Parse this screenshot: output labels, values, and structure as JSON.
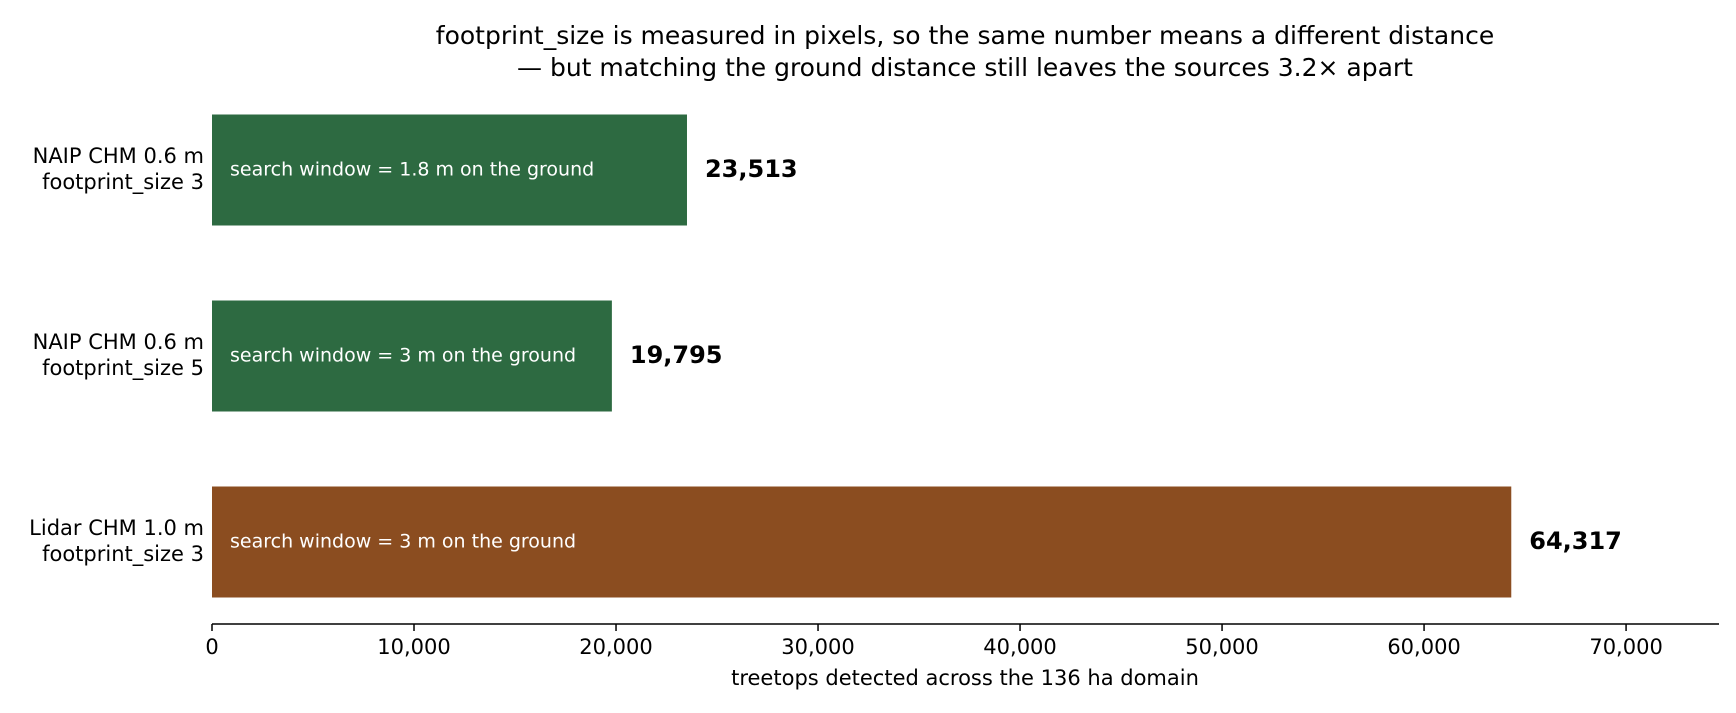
{
  "chart_data": {
    "type": "barh",
    "title": [
      "footprint_size is measured in pixels, so the same number means a different distance",
      "— but matching the ground distance still leaves the sources 3.2× apart"
    ],
    "categories": [
      [
        "NAIP CHM 0.6 m",
        "footprint_size 3"
      ],
      [
        "NAIP CHM 0.6 m",
        "footprint_size 5"
      ],
      [
        "Lidar CHM 1.0 m",
        "footprint_size 3"
      ]
    ],
    "values": [
      23513,
      19795,
      64317
    ],
    "value_labels": [
      "23,513",
      "19,795",
      "64,317"
    ],
    "annotations": [
      "search window = 1.8 m on the ground",
      "search window = 3 m on the ground",
      "search window = 3 m on the ground"
    ],
    "colors": [
      "#2d6a41",
      "#2d6a41",
      "#8b4d20"
    ],
    "xlabel": "treetops detected across the 136 ha domain",
    "xlim": [
      0,
      74600
    ],
    "xticks": [
      0,
      {
        "value": 10000,
        "label": "10,000"
      },
      {
        "value": 20000,
        "label": "20,000"
      },
      {
        "value": 30000,
        "label": "30,000"
      },
      {
        "value": 40000,
        "label": "40,000"
      },
      {
        "value": 50000,
        "label": "50,000"
      },
      {
        "value": 60000,
        "label": "60,000"
      },
      {
        "value": 70000,
        "label": "70,000"
      }
    ],
    "grid": false
  }
}
